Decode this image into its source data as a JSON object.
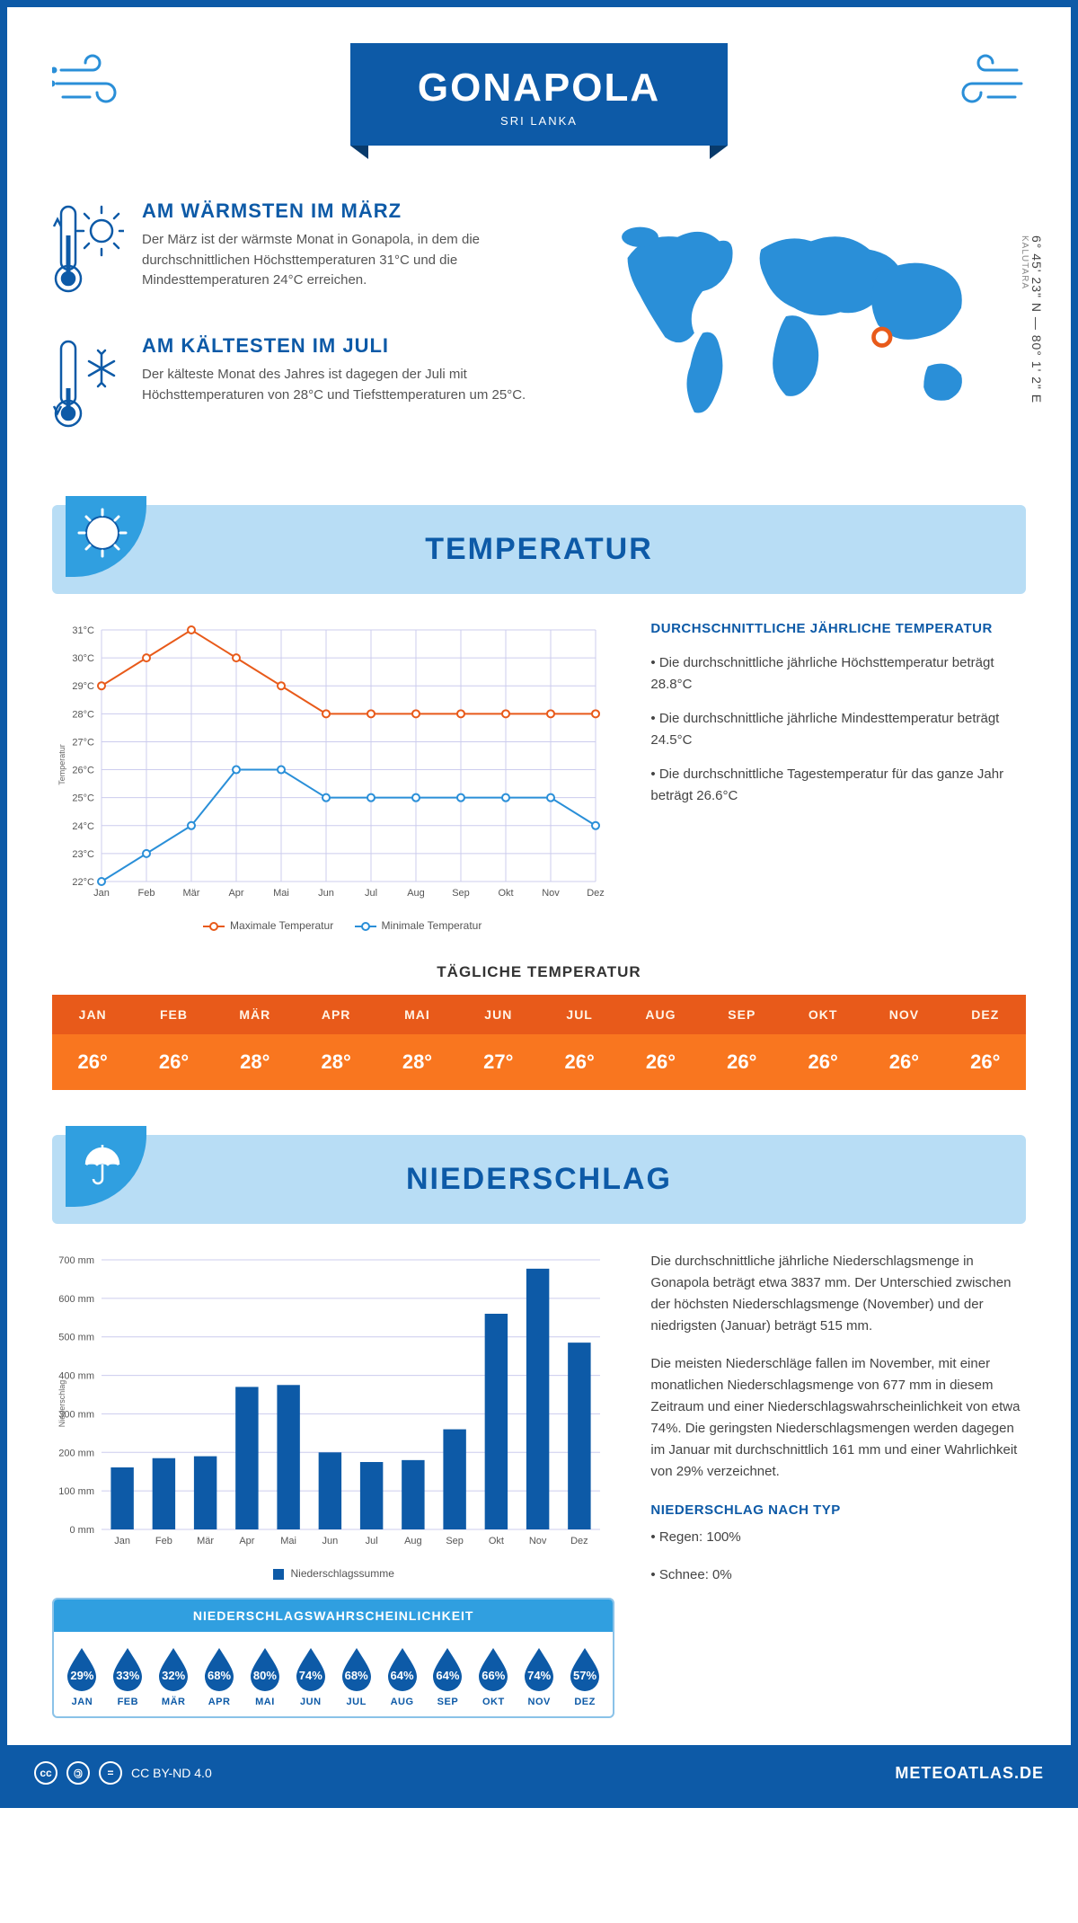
{
  "header": {
    "title": "GONAPOLA",
    "subtitle": "SRI LANKA"
  },
  "coords": {
    "lat": "6° 45' 23\" N",
    "lon": "80° 1' 2\" E",
    "district": "KALUTARA"
  },
  "facts": {
    "warm": {
      "title": "AM WÄRMSTEN IM MÄRZ",
      "text": "Der März ist der wärmste Monat in Gonapola, in dem die durchschnittlichen Höchsttemperaturen 31°C und die Mindesttemperaturen 24°C erreichen."
    },
    "cold": {
      "title": "AM KÄLTESTEN IM JULI",
      "text": "Der kälteste Monat des Jahres ist dagegen der Juli mit Höchsttemperaturen von 28°C und Tiefsttemperaturen um 25°C."
    }
  },
  "months": [
    "Jan",
    "Feb",
    "Mär",
    "Apr",
    "Mai",
    "Jun",
    "Jul",
    "Aug",
    "Sep",
    "Okt",
    "Nov",
    "Dez"
  ],
  "months_upper": [
    "JAN",
    "FEB",
    "MÄR",
    "APR",
    "MAI",
    "JUN",
    "JUL",
    "AUG",
    "SEP",
    "OKT",
    "NOV",
    "DEZ"
  ],
  "temperature": {
    "section_title": "TEMPERATUR",
    "chart": {
      "type": "line",
      "max": [
        29,
        30,
        31,
        30,
        29,
        28,
        28,
        28,
        28,
        28,
        28,
        28
      ],
      "min": [
        22,
        23,
        24,
        26,
        26,
        25,
        25,
        25,
        25,
        25,
        25,
        24
      ],
      "ylim": [
        22,
        31
      ],
      "ytick_step": 1,
      "y_axis_label": "Temperatur",
      "max_color": "#e85a1a",
      "min_color": "#2a8fd8",
      "grid_color": "#c8d8ec",
      "bg": "#ffffff",
      "marker": "circle",
      "marker_fill": "#ffffff",
      "line_width": 2
    },
    "legend_max": "Maximale Temperatur",
    "legend_min": "Minimale Temperatur",
    "text_title": "DURCHSCHNITTLICHE JÄHRLICHE TEMPERATUR",
    "bullets": [
      "• Die durchschnittliche jährliche Höchsttemperatur beträgt 28.8°C",
      "• Die durchschnittliche jährliche Mindesttemperatur beträgt 24.5°C",
      "• Die durchschnittliche Tagestemperatur für das ganze Jahr beträgt 26.6°C"
    ],
    "daily_title": "TÄGLICHE TEMPERATUR",
    "daily": [
      "26°",
      "26°",
      "28°",
      "28°",
      "28°",
      "27°",
      "26°",
      "26°",
      "26°",
      "26°",
      "26°",
      "26°"
    ],
    "daily_header_bg": "#e85a1a",
    "daily_value_bg": "#f9761f"
  },
  "precipitation": {
    "section_title": "NIEDERSCHLAG",
    "chart": {
      "type": "bar",
      "values": [
        161,
        185,
        190,
        370,
        375,
        200,
        175,
        180,
        260,
        560,
        677,
        485
      ],
      "ylim": [
        0,
        700
      ],
      "ytick_step": 100,
      "y_axis_label": "Niederschlag",
      "bar_color": "#0d5aa7",
      "grid_color": "#c8d8ec",
      "bg": "#ffffff",
      "bar_width": 0.55,
      "legend": "Niederschlagssumme"
    },
    "para1": "Die durchschnittliche jährliche Niederschlagsmenge in Gonapola beträgt etwa 3837 mm. Der Unterschied zwischen der höchsten Niederschlagsmenge (November) und der niedrigsten (Januar) beträgt 515 mm.",
    "para2": "Die meisten Niederschläge fallen im November, mit einer monatlichen Niederschlagsmenge von 677 mm in diesem Zeitraum und einer Niederschlagswahrscheinlichkeit von etwa 74%. Die geringsten Niederschlagsmengen werden dagegen im Januar mit durchschnittlich 161 mm und einer Wahrlichkeit von 29% verzeichnet.",
    "type_title": "NIEDERSCHLAG NACH TYP",
    "type_rain": "• Regen: 100%",
    "type_snow": "• Schnee: 0%",
    "prob_title": "NIEDERSCHLAGSWAHRSCHEINLICHKEIT",
    "prob": [
      "29%",
      "33%",
      "32%",
      "68%",
      "80%",
      "74%",
      "68%",
      "64%",
      "64%",
      "66%",
      "74%",
      "57%"
    ],
    "drop_color": "#0d5aa7"
  },
  "footer": {
    "license": "CC BY-ND 4.0",
    "site": "METEOATLAS.DE"
  }
}
